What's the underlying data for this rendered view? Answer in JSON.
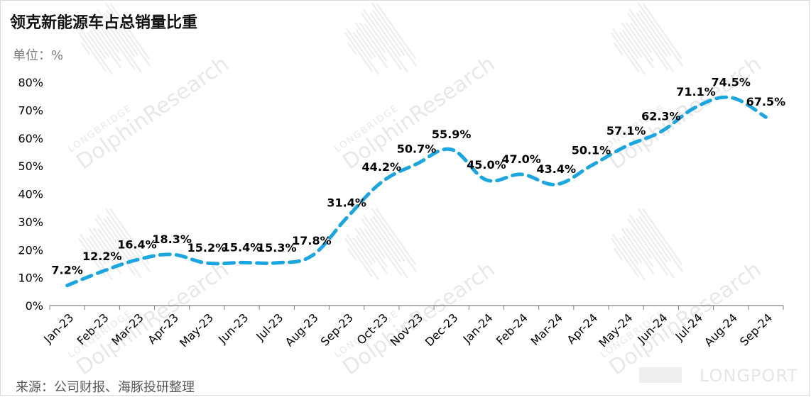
{
  "title": "领克新能源车占总销量比重",
  "unit_label": "单位：%",
  "source": "来源：公司财报、海豚投研整理",
  "watermark": {
    "brand": "LONGBRIDGE",
    "name": "DolphinResearch",
    "logo": "LONGPORT"
  },
  "colors": {
    "line": "#1aa6e0",
    "axis": "#7f7f7f",
    "text": "#000000",
    "watermark": "#e8e8e8"
  },
  "chart_data": {
    "type": "line",
    "title": "领克新能源车占总销量比重",
    "ylabel": "单位：%",
    "ylim": [
      0,
      80
    ],
    "yticks": [
      "0%",
      "10%",
      "20%",
      "30%",
      "40%",
      "50%",
      "60%",
      "70%",
      "80%"
    ],
    "grid": false,
    "line_style": "dashed",
    "categories": [
      "Jan-23",
      "Feb-23",
      "Mar-23",
      "Apr-23",
      "May-23",
      "Jun-23",
      "Jul-23",
      "Aug-23",
      "Sep-23",
      "Oct-23",
      "Nov-23",
      "Dec-23",
      "Jan-24",
      "Feb-24",
      "Mar-24",
      "Apr-24",
      "May-24",
      "Jun-24",
      "Jul-24",
      "Aug-24",
      "Sep-24"
    ],
    "values": [
      7.2,
      12.2,
      16.4,
      18.3,
      15.2,
      15.4,
      15.3,
      17.8,
      31.4,
      44.2,
      50.7,
      55.9,
      45.0,
      47.0,
      43.4,
      50.1,
      57.1,
      62.3,
      71.1,
      74.5,
      67.5
    ],
    "data_labels": [
      "7.2%",
      "12.2%",
      "16.4%",
      "18.3%",
      "15.2%",
      "15.4%",
      "15.3%",
      "17.8%",
      "31.4%",
      "44.2%",
      "50.7%",
      "55.9%",
      "45.0%",
      "47.0%",
      "43.4%",
      "50.1%",
      "57.1%",
      "62.3%",
      "71.1%",
      "74.5%",
      "67.5%"
    ]
  }
}
